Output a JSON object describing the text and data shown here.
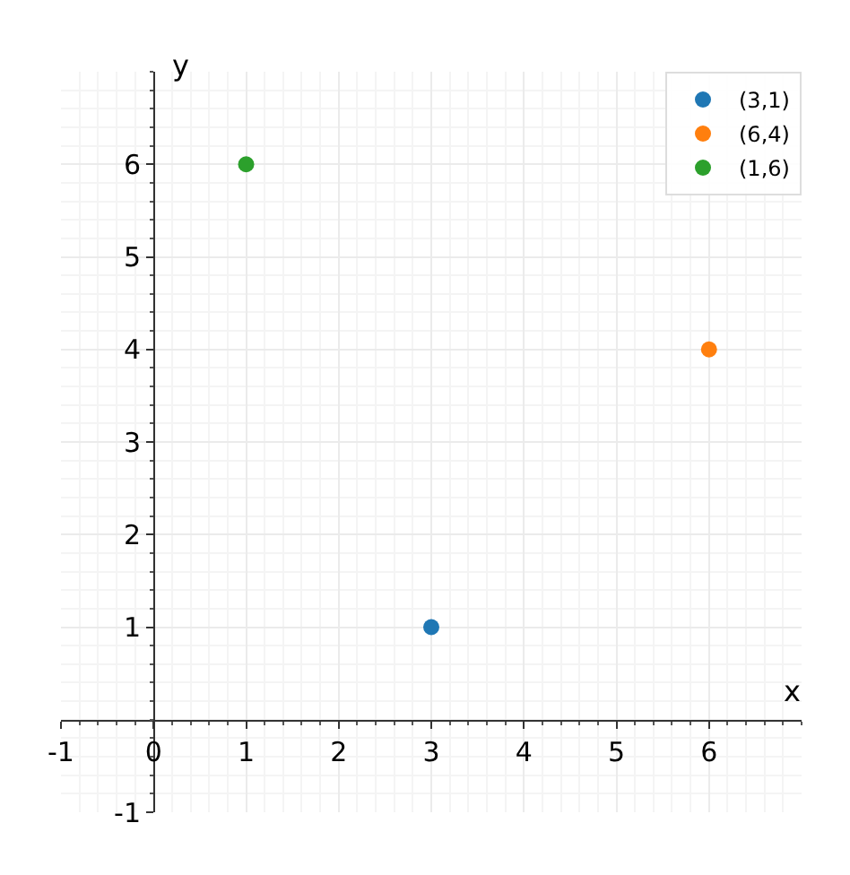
{
  "chart_data": {
    "type": "scatter",
    "xlabel": "x",
    "ylabel": "y",
    "series": [
      {
        "name": "(3,1)",
        "color": "#1f77b4",
        "x": [
          3
        ],
        "values": [
          1
        ]
      },
      {
        "name": "(6,4)",
        "color": "#ff7f0e",
        "x": [
          6
        ],
        "values": [
          4
        ]
      },
      {
        "name": "(1,6)",
        "color": "#2ca02c",
        "x": [
          1
        ],
        "values": [
          6
        ]
      }
    ],
    "xlim": [
      -1,
      7
    ],
    "ylim": [
      -1,
      7
    ],
    "xticks": [
      -1,
      0,
      1,
      2,
      3,
      4,
      5,
      6
    ],
    "yticks": [
      -1,
      1,
      2,
      3,
      4,
      5,
      6
    ],
    "grid": true,
    "legend": "top right",
    "marker": "circle"
  }
}
